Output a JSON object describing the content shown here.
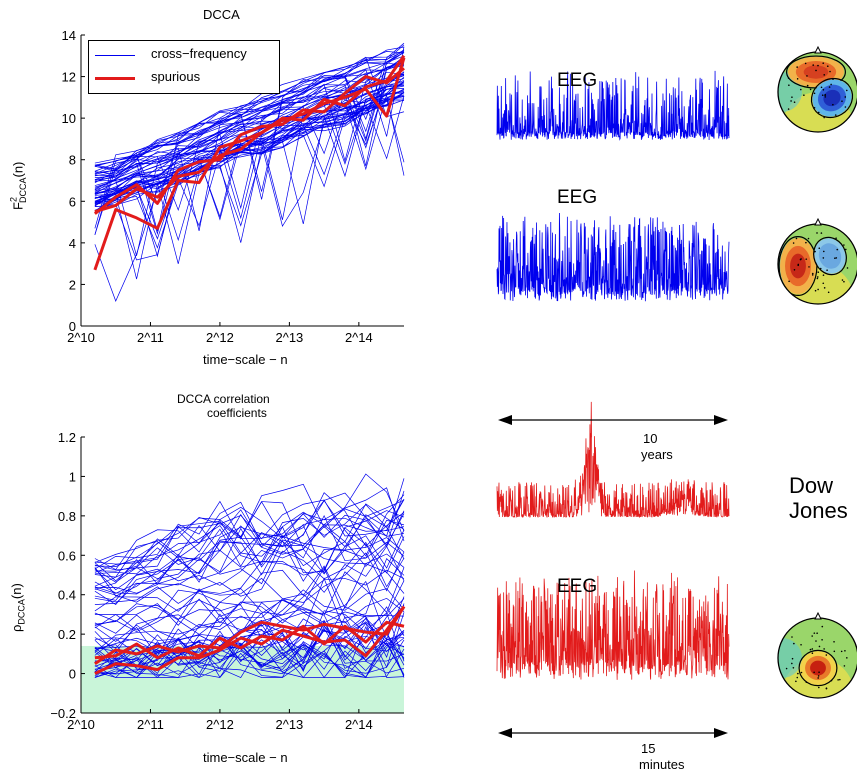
{
  "chart_data": [
    {
      "type": "line",
      "title": "DCCA",
      "xlabel": "time−scale − n",
      "ylabel_main": "F",
      "ylabel_sup": "2",
      "ylabel_sub": "DCCA",
      "ylabel_tail": "(n)",
      "x_tick_labels": [
        "2^10",
        "2^11",
        "2^12",
        "2^13",
        "2^14"
      ],
      "x_tick_exponents": [
        10,
        11,
        12,
        13,
        14
      ],
      "xlim_exponent": [
        10,
        14.65
      ],
      "ylim": [
        0,
        14
      ],
      "y_ticks": [
        0,
        2,
        4,
        6,
        8,
        10,
        12,
        14
      ],
      "legend": [
        {
          "label": "cross−frequency",
          "color": "#0000ee"
        },
        {
          "label": "spurious",
          "color": "#e21b1b"
        }
      ],
      "legend_position": "top-left",
      "x_exponents": [
        10.2,
        10.5,
        10.8,
        11.1,
        11.4,
        11.7,
        12.0,
        12.3,
        12.6,
        12.9,
        13.2,
        13.5,
        13.8,
        14.1,
        14.4,
        14.65
      ],
      "series": [
        {
          "name": "cross−frequency",
          "mean": [
            6.0,
            6.3,
            6.9,
            7.0,
            7.4,
            7.7,
            8.2,
            8.6,
            8.9,
            9.3,
            9.7,
            10.1,
            10.5,
            10.9,
            11.3,
            11.8
          ],
          "band_low": [
            5.6,
            6.0,
            6.4,
            6.6,
            7.0,
            7.4,
            7.8,
            8.2,
            8.4,
            8.8,
            9.2,
            9.6,
            9.9,
            10.3,
            10.7,
            11.0
          ],
          "band_high": [
            7.8,
            8.0,
            8.5,
            8.9,
            9.3,
            9.7,
            10.2,
            10.6,
            11.0,
            11.4,
            11.8,
            12.2,
            12.5,
            12.9,
            13.2,
            13.6
          ],
          "count": 60,
          "color": "#0000ee"
        },
        {
          "name": "spurious",
          "lines": [
            [
              2.7,
              5.6,
              5.2,
              4.7,
              7.0,
              6.9,
              8.6,
              8.9,
              9.3,
              9.9,
              10.2,
              10.7,
              11.0,
              11.4,
              10.1,
              12.9
            ],
            [
              5.4,
              6.2,
              6.8,
              5.9,
              7.5,
              7.9,
              8.0,
              9.2,
              9.6,
              9.7,
              10.4,
              10.3,
              11.2,
              12.0,
              11.7,
              12.4
            ],
            [
              5.5,
              5.8,
              6.6,
              6.2,
              7.2,
              7.4,
              8.2,
              8.5,
              9.3,
              10.0,
              9.9,
              10.9,
              10.6,
              11.5,
              11.8,
              13.0
            ]
          ],
          "color": "#e21b1b"
        }
      ]
    },
    {
      "type": "line",
      "title": "DCCA correlation\ncoefficients",
      "title_line1": "DCCA correlation",
      "title_line2": "coefficients",
      "xlabel": "time−scale − n",
      "ylabel_main": "ρ",
      "ylabel_sub": "DCCA",
      "ylabel_tail": "(n)",
      "x_tick_labels": [
        "2^10",
        "2^11",
        "2^12",
        "2^13",
        "2^14"
      ],
      "x_tick_exponents": [
        10,
        11,
        12,
        13,
        14
      ],
      "xlim_exponent": [
        10,
        14.65
      ],
      "ylim": [
        -0.2,
        1.2
      ],
      "y_ticks": [
        -0.2,
        0,
        0.2,
        0.4,
        0.6,
        0.8,
        1,
        1.2
      ],
      "y_tick_labels": [
        "−0.2",
        "0",
        "0.2",
        "0.4",
        "0.6",
        "0.8",
        "1",
        "1.2"
      ],
      "significance_threshold": 0.14,
      "x_exponents": [
        10.2,
        10.5,
        10.8,
        11.1,
        11.4,
        11.7,
        12.0,
        12.3,
        12.6,
        12.9,
        13.2,
        13.5,
        13.8,
        14.1,
        14.4,
        14.65
      ],
      "series": [
        {
          "name": "cross−frequency",
          "top": [
            0.6,
            0.58,
            0.64,
            0.68,
            0.72,
            0.74,
            0.78,
            0.8,
            0.81,
            0.82,
            0.83,
            0.84,
            0.85,
            0.86,
            0.87,
            0.88
          ],
          "mid": [
            0.15,
            0.16,
            0.18,
            0.19,
            0.2,
            0.22,
            0.24,
            0.26,
            0.28,
            0.3,
            0.31,
            0.33,
            0.35,
            0.36,
            0.38,
            0.4
          ],
          "count": 60,
          "color": "#0000ee"
        },
        {
          "name": "spurious",
          "lines": [
            [
              0.0,
              0.05,
              0.04,
              0.02,
              0.08,
              0.08,
              0.12,
              0.18,
              0.15,
              0.22,
              0.19,
              0.16,
              0.17,
              0.09,
              0.22,
              0.34
            ],
            [
              0.05,
              0.12,
              0.1,
              0.14,
              0.11,
              0.14,
              0.13,
              0.21,
              0.26,
              0.24,
              0.22,
              0.25,
              0.23,
              0.21,
              0.2,
              0.34
            ],
            [
              0.08,
              0.09,
              0.15,
              0.08,
              0.13,
              0.09,
              0.18,
              0.13,
              0.19,
              0.17,
              0.24,
              0.15,
              0.24,
              0.16,
              0.26,
              0.24
            ]
          ],
          "color": "#e21b1b"
        }
      ]
    }
  ],
  "signals": [
    {
      "label": "EEG",
      "color": "#0000ee",
      "baseline_style": "spiky-low"
    },
    {
      "label": "EEG",
      "color": "#0000ee",
      "baseline_style": "dense"
    },
    {
      "label": "",
      "color": "#e21b1b",
      "baseline_style": "market"
    },
    {
      "label": "EEG",
      "color": "#e21b1b",
      "baseline_style": "dense"
    }
  ],
  "annotations": {
    "years_value": "10",
    "years_unit": "years",
    "minutes_value": "15",
    "minutes_unit": "minutes",
    "dow_line1": "Dow",
    "dow_line2": "Jones"
  },
  "topomaps": [
    {
      "name": "topomap-1",
      "pattern": "frontal-red-right-blue"
    },
    {
      "name": "topomap-2",
      "pattern": "left-red-right-blue"
    },
    {
      "name": "topomap-3",
      "pattern": "central-red"
    }
  ],
  "colors": {
    "blue": "#0000ee",
    "red": "#e21b1b",
    "significance_fill": "#c9f5d9"
  }
}
